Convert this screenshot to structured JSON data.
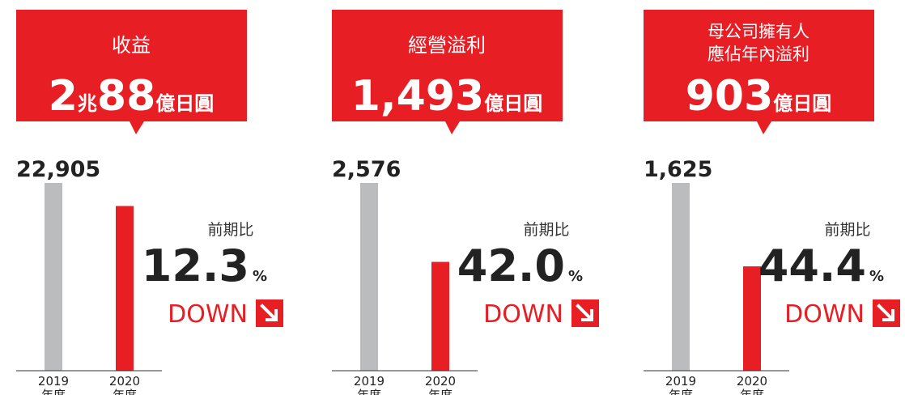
{
  "chart_data": [
    {
      "type": "bar",
      "title": [
        "收益"
      ],
      "headline": [
        [
          "2",
          "兆"
        ],
        [
          "88",
          "億日圓"
        ]
      ],
      "categories": [
        [
          "2019",
          "年度"
        ],
        [
          "2020",
          "年度"
        ]
      ],
      "values": [
        22905,
        20088
      ],
      "value_labels": [
        "22,905",
        null
      ],
      "colors": [
        "#bbbcbe",
        "#e81e25"
      ],
      "change_label": "前期比",
      "change_value": "12.3",
      "change_unit": "%",
      "direction": "DOWN"
    },
    {
      "type": "bar",
      "title": [
        "經營溢利"
      ],
      "headline": [
        [
          "1,493",
          "億日圓"
        ]
      ],
      "categories": [
        [
          "2019",
          "年度"
        ],
        [
          "2020",
          "年度"
        ]
      ],
      "values": [
        2576,
        1493
      ],
      "value_labels": [
        "2,576",
        null
      ],
      "colors": [
        "#bbbcbe",
        "#e81e25"
      ],
      "change_label": "前期比",
      "change_value": "42.0",
      "change_unit": "%",
      "direction": "DOWN"
    },
    {
      "type": "bar",
      "title": [
        "母公司擁有人",
        "應佔年內溢利"
      ],
      "headline": [
        [
          "903",
          "億日圓"
        ]
      ],
      "categories": [
        [
          "2019",
          "年度"
        ],
        [
          "2020",
          "年度"
        ]
      ],
      "values": [
        1625,
        903
      ],
      "value_labels": [
        "1,625",
        null
      ],
      "colors": [
        "#bbbcbe",
        "#e81e25"
      ],
      "change_label": "前期比",
      "change_value": "44.4",
      "change_unit": "%",
      "direction": "DOWN"
    }
  ]
}
